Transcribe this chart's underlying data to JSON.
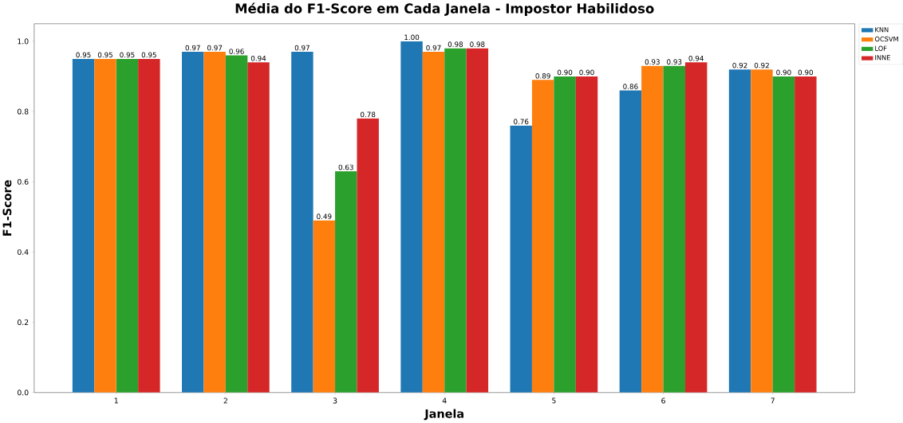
{
  "chart_data": {
    "type": "bar",
    "title": "Média do F1-Score em Cada Janela - Impostor Habilidoso",
    "xlabel": "Janela",
    "ylabel": "F1-Score",
    "categories": [
      "1",
      "2",
      "3",
      "4",
      "5",
      "6",
      "7"
    ],
    "series": [
      {
        "name": "KNN",
        "color": "#1f77b4",
        "values": [
          0.95,
          0.97,
          0.97,
          1.0,
          0.76,
          0.86,
          0.92
        ],
        "value_labels": [
          "0.95",
          "0.97",
          "0.97",
          "1.00",
          "0.76",
          "0.86",
          "0.92"
        ]
      },
      {
        "name": "OCSVM",
        "color": "#ff7f0e",
        "values": [
          0.95,
          0.97,
          0.49,
          0.97,
          0.89,
          0.93,
          0.92
        ],
        "value_labels": [
          "0.95",
          "0.97",
          "0.49",
          "0.97",
          "0.89",
          "0.93",
          "0.92"
        ]
      },
      {
        "name": "LOF",
        "color": "#2ca02c",
        "values": [
          0.95,
          0.96,
          0.63,
          0.98,
          0.9,
          0.93,
          0.9
        ],
        "value_labels": [
          "0.95",
          "0.96",
          "0.63",
          "0.98",
          "0.90",
          "0.93",
          "0.90"
        ]
      },
      {
        "name": "INNE",
        "color": "#d62728",
        "values": [
          0.95,
          0.94,
          0.78,
          0.98,
          0.9,
          0.94,
          0.9
        ],
        "value_labels": [
          "0.95",
          "0.94",
          "0.78",
          "0.98",
          "0.90",
          "0.94",
          "0.90"
        ]
      }
    ],
    "ylim": [
      0,
      1.05
    ],
    "yticks": [
      {
        "value": 0,
        "label": "0.0"
      },
      {
        "value": 0.2,
        "label": "0.2"
      },
      {
        "value": 0.4,
        "label": "0.4"
      },
      {
        "value": 0.6,
        "label": "0.6"
      },
      {
        "value": 0.8,
        "label": "0.8"
      },
      {
        "value": 1.0,
        "label": "1.0"
      }
    ],
    "legend": "top right",
    "grid": false
  }
}
